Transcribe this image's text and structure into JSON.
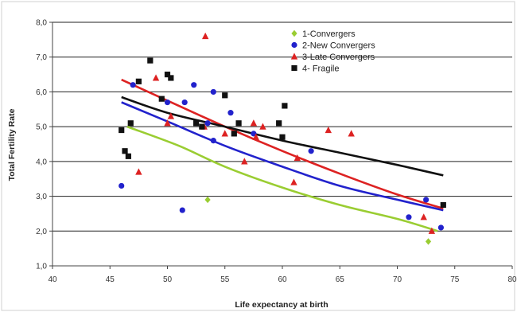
{
  "chart_data": {
    "type": "scatter",
    "title": "",
    "xlabel": "Life expectancy at birth",
    "ylabel": "Total Fertility Rate",
    "xlim": [
      40,
      80
    ],
    "ylim": [
      1.0,
      8.0
    ],
    "x_ticks": [
      "40",
      "45",
      "50",
      "55",
      "60",
      "65",
      "70",
      "75",
      "80"
    ],
    "y_ticks": [
      "1,0",
      "2,0",
      "3,0",
      "4,0",
      "5,0",
      "6,0",
      "7,0",
      "8,0"
    ],
    "grid": "horizontal",
    "legend_position": "top-right",
    "series": [
      {
        "name": "1-Convergers",
        "color": "#9acd32",
        "marker": "diamond",
        "points": [
          [
            53.5,
            2.9
          ],
          [
            72.7,
            1.7
          ]
        ],
        "trend": [
          [
            46.5,
            5.0
          ],
          [
            51,
            4.45
          ],
          [
            55,
            3.85
          ],
          [
            60,
            3.25
          ],
          [
            65,
            2.75
          ],
          [
            70,
            2.35
          ],
          [
            73.5,
            2.0
          ]
        ]
      },
      {
        "name": "2-New Convergers",
        "color": "#2222cc",
        "marker": "circle",
        "points": [
          [
            46.0,
            3.3
          ],
          [
            47.0,
            6.2
          ],
          [
            50.0,
            5.7
          ],
          [
            51.5,
            5.7
          ],
          [
            52.3,
            6.2
          ],
          [
            53.5,
            5.1
          ],
          [
            54.0,
            4.6
          ],
          [
            54.0,
            6.0
          ],
          [
            55.5,
            5.4
          ],
          [
            57.5,
            4.8
          ],
          [
            62.5,
            4.3
          ],
          [
            51.3,
            2.6
          ],
          [
            71.0,
            2.4
          ],
          [
            72.5,
            2.9
          ],
          [
            73.8,
            2.1
          ]
        ],
        "trend": [
          [
            46.0,
            5.7
          ],
          [
            50,
            5.15
          ],
          [
            55,
            4.45
          ],
          [
            60,
            3.85
          ],
          [
            65,
            3.3
          ],
          [
            70,
            2.9
          ],
          [
            74.0,
            2.6
          ]
        ]
      },
      {
        "name": "3-Late Convergers",
        "color": "#dd2222",
        "marker": "triangle",
        "points": [
          [
            53.3,
            7.6
          ],
          [
            49.0,
            6.4
          ],
          [
            50.0,
            5.1
          ],
          [
            50.3,
            5.3
          ],
          [
            47.5,
            3.7
          ],
          [
            53.2,
            5.0
          ],
          [
            55.0,
            4.8
          ],
          [
            56.7,
            4.0
          ],
          [
            57.5,
            5.1
          ],
          [
            57.7,
            4.7
          ],
          [
            58.3,
            5.0
          ],
          [
            61.0,
            3.4
          ],
          [
            61.3,
            4.1
          ],
          [
            64.0,
            4.9
          ],
          [
            66.0,
            4.8
          ],
          [
            72.3,
            2.4
          ],
          [
            73.0,
            2.0
          ]
        ],
        "trend": [
          [
            46.0,
            6.35
          ],
          [
            50,
            5.75
          ],
          [
            55,
            5.0
          ],
          [
            60,
            4.3
          ],
          [
            65,
            3.65
          ],
          [
            70,
            3.05
          ],
          [
            74.0,
            2.65
          ]
        ]
      },
      {
        "name": "4- Fragile",
        "color": "#111111",
        "marker": "square",
        "points": [
          [
            46.0,
            4.9
          ],
          [
            46.3,
            4.3
          ],
          [
            46.6,
            4.15
          ],
          [
            46.8,
            5.1
          ],
          [
            47.5,
            6.3
          ],
          [
            48.5,
            6.9
          ],
          [
            49.5,
            5.8
          ],
          [
            50.0,
            6.5
          ],
          [
            50.3,
            6.4
          ],
          [
            52.5,
            5.1
          ],
          [
            53.0,
            5.0
          ],
          [
            55.0,
            5.9
          ],
          [
            55.8,
            4.8
          ],
          [
            56.2,
            5.1
          ],
          [
            59.7,
            5.1
          ],
          [
            60.0,
            4.7
          ],
          [
            60.2,
            5.6
          ],
          [
            74.0,
            2.75
          ]
        ],
        "trend": [
          [
            46.0,
            5.85
          ],
          [
            50,
            5.4
          ],
          [
            55,
            5.0
          ],
          [
            60,
            4.6
          ],
          [
            65,
            4.25
          ],
          [
            70,
            3.9
          ],
          [
            74.0,
            3.6
          ]
        ]
      }
    ]
  }
}
